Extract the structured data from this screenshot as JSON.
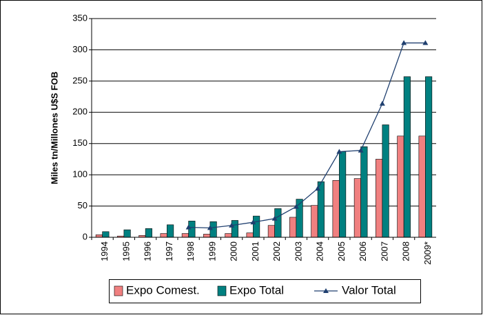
{
  "chart_data": {
    "type": "bar",
    "ylabel": "Miles tn/Millones U$S FOB",
    "categories": [
      "1994",
      "1995",
      "1996",
      "1997",
      "1998",
      "1999",
      "2000",
      "2001",
      "2002",
      "2003",
      "2004",
      "2005",
      "2006",
      "2007",
      "2008",
      "2009*"
    ],
    "series": [
      {
        "name": "Expo Comest.",
        "color": "#f08080",
        "values": [
          4,
          2,
          3,
          6,
          6,
          5,
          6,
          7,
          19,
          32,
          51,
          91,
          94,
          125,
          162,
          162
        ]
      },
      {
        "name": "Expo Total",
        "color": "#008080",
        "values": [
          9,
          12,
          14,
          20,
          26,
          25,
          27,
          34,
          46,
          61,
          89,
          137,
          145,
          180,
          257,
          257
        ]
      },
      {
        "name": "Valor Total",
        "color": "#1f3f6f",
        "type": "line",
        "values": [
          null,
          null,
          null,
          null,
          16,
          15,
          19,
          24,
          30,
          49,
          78,
          137,
          139,
          214,
          311,
          311
        ]
      }
    ],
    "ylim": [
      0,
      350
    ],
    "yticks": [
      0,
      50,
      100,
      150,
      200,
      250,
      300,
      350
    ],
    "grid": true
  }
}
